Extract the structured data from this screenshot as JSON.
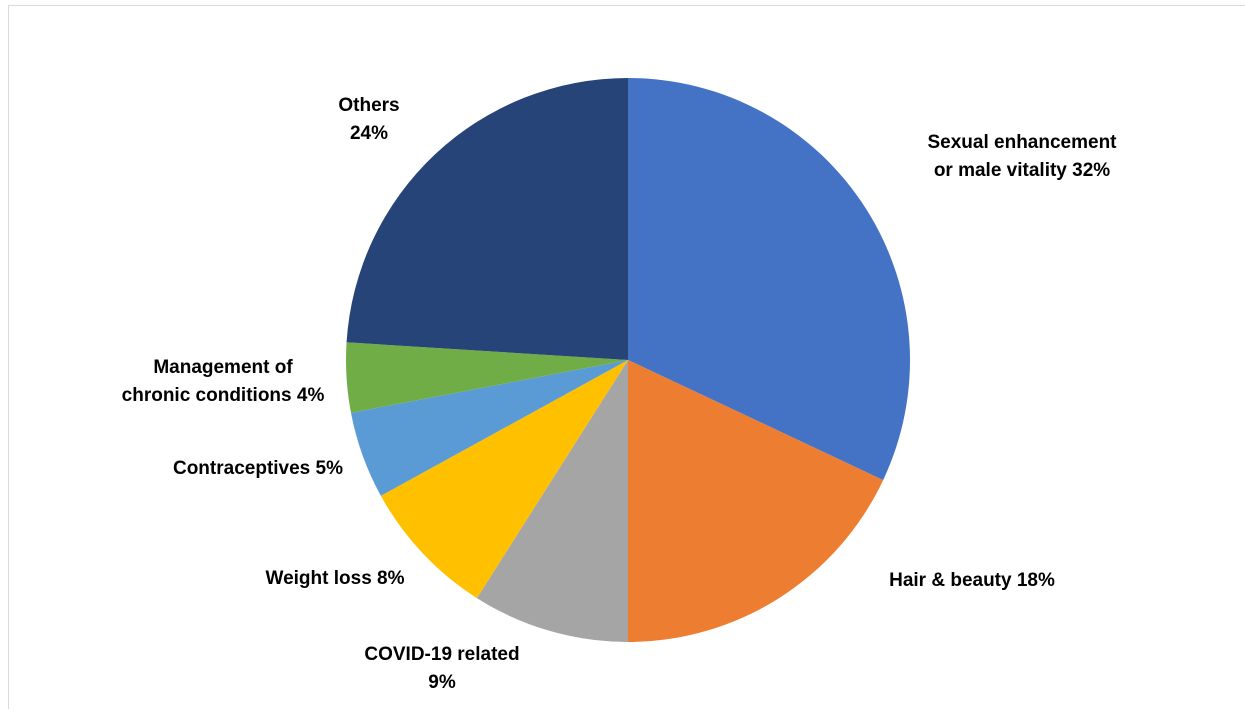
{
  "chart_data": {
    "type": "pie",
    "title": "",
    "start_angle_deg": 0,
    "direction": "clockwise",
    "slices": [
      {
        "label": "Sexual enhancement or male vitality",
        "value": 32,
        "label_lines": [
          "Sexual enhancement",
          "or male vitality 32%"
        ],
        "color": "#4472C4"
      },
      {
        "label": "Hair & beauty",
        "value": 18,
        "label_lines": [
          "Hair & beauty 18%"
        ],
        "color": "#ED7D31"
      },
      {
        "label": "COVID-19 related",
        "value": 9,
        "label_lines": [
          "COVID-19 related",
          "9%"
        ],
        "color": "#A5A5A5"
      },
      {
        "label": "Weight loss",
        "value": 8,
        "label_lines": [
          "Weight loss 8%"
        ],
        "color": "#FFC000"
      },
      {
        "label": "Contraceptives",
        "value": 5,
        "label_lines": [
          "Contraceptives 5%"
        ],
        "color": "#5B9BD5"
      },
      {
        "label": "Management of chronic conditions",
        "value": 4,
        "label_lines": [
          "Management of",
          "chronic conditions 4%"
        ],
        "color": "#70AD47"
      },
      {
        "label": "Others",
        "value": 24,
        "label_lines": [
          "Others",
          "24%"
        ],
        "color": "#264478"
      }
    ],
    "legend": "none",
    "data_labels": "outside"
  }
}
